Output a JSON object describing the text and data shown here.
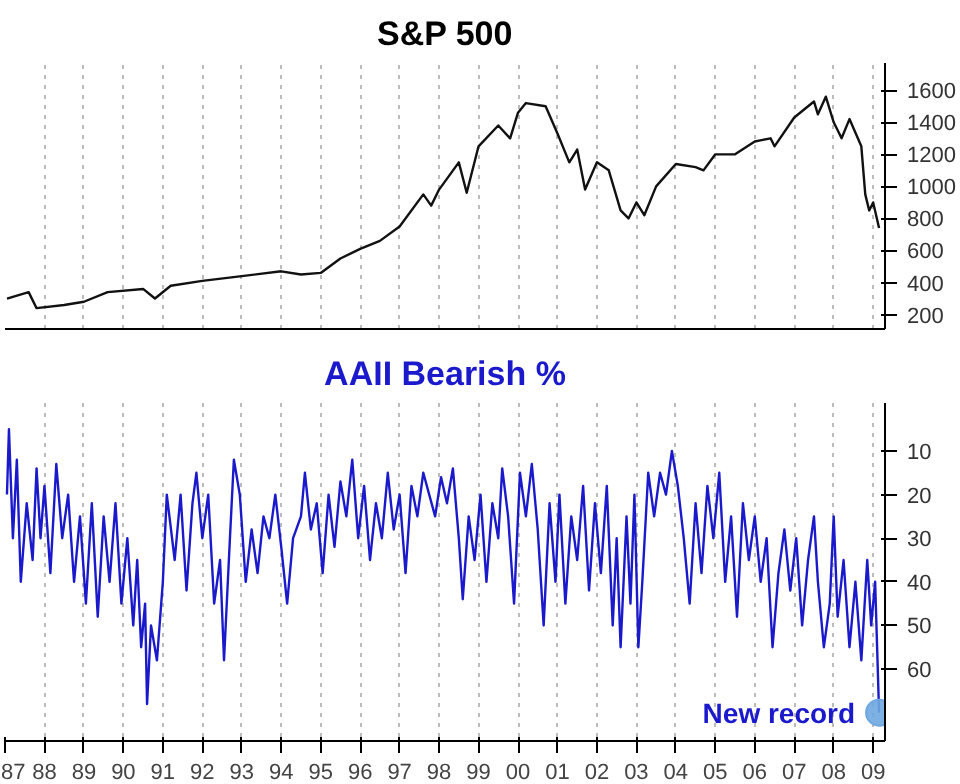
{
  "chart_data": [
    {
      "type": "line",
      "title": "S&P 500",
      "color": "#111111",
      "xlim": [
        1987.0,
        2009.3
      ],
      "ylim": [
        110,
        1770
      ],
      "yticks": [
        200,
        400,
        600,
        800,
        1000,
        1200,
        1400,
        1600
      ],
      "grid": "x",
      "tick_labels": "y",
      "xticks": [
        1987,
        1988,
        1989,
        1990,
        1991,
        1992,
        1993,
        1994,
        1995,
        1996,
        1997,
        1998,
        1999,
        2000,
        2001,
        2002,
        2003,
        2004,
        2005,
        2006,
        2007,
        2008,
        2009
      ],
      "x": [
        1987.05,
        1987.6,
        1987.8,
        1988.5,
        1989.0,
        1989.6,
        1990.5,
        1990.8,
        1991.2,
        1992.0,
        1993.0,
        1994.0,
        1994.5,
        1995.0,
        1995.5,
        1996.0,
        1996.5,
        1997.0,
        1997.6,
        1997.8,
        1998.0,
        1998.5,
        1998.7,
        1999.0,
        1999.5,
        1999.8,
        2000.0,
        2000.2,
        2000.7,
        2001.0,
        2001.3,
        2001.5,
        2001.7,
        2002.0,
        2002.3,
        2002.6,
        2002.8,
        2003.0,
        2003.2,
        2003.5,
        2004.0,
        2004.5,
        2004.7,
        2005.0,
        2005.5,
        2006.0,
        2006.4,
        2006.5,
        2007.0,
        2007.5,
        2007.6,
        2007.8,
        2008.0,
        2008.2,
        2008.4,
        2008.7,
        2008.8,
        2008.9,
        2009.0,
        2009.15
      ],
      "values": [
        300,
        340,
        240,
        260,
        280,
        340,
        360,
        300,
        380,
        410,
        440,
        470,
        450,
        460,
        550,
        610,
        660,
        750,
        950,
        880,
        980,
        1150,
        960,
        1250,
        1380,
        1300,
        1460,
        1520,
        1500,
        1330,
        1150,
        1230,
        980,
        1150,
        1100,
        850,
        800,
        900,
        820,
        1000,
        1140,
        1120,
        1100,
        1200,
        1200,
        1280,
        1300,
        1250,
        1430,
        1530,
        1450,
        1560,
        1400,
        1300,
        1420,
        1250,
        950,
        850,
        900,
        740
      ]
    },
    {
      "type": "line",
      "title": "AAII Bearish %",
      "color": "#1a1acc",
      "xlim": [
        1987.0,
        2009.3
      ],
      "ylim": [
        76.5,
        -1
      ],
      "yticks": [
        10,
        20,
        30,
        40,
        50,
        60
      ],
      "grid": "x",
      "xticks": [
        {
          "value": 1987,
          "label": "87"
        },
        {
          "value": 1988,
          "label": "88"
        },
        {
          "value": 1989,
          "label": "89"
        },
        {
          "value": 1990,
          "label": "90"
        },
        {
          "value": 1991,
          "label": "91"
        },
        {
          "value": 1992,
          "label": "92"
        },
        {
          "value": 1993,
          "label": "93"
        },
        {
          "value": 1994,
          "label": "94"
        },
        {
          "value": 1995,
          "label": "95"
        },
        {
          "value": 1996,
          "label": "96"
        },
        {
          "value": 1997,
          "label": "97"
        },
        {
          "value": 1998,
          "label": "98"
        },
        {
          "value": 1999,
          "label": "99"
        },
        {
          "value": 2000,
          "label": "00"
        },
        {
          "value": 2001,
          "label": "01"
        },
        {
          "value": 2002,
          "label": "02"
        },
        {
          "value": 2003,
          "label": "03"
        },
        {
          "value": 2004,
          "label": "04"
        },
        {
          "value": 2005,
          "label": "05"
        },
        {
          "value": 2006,
          "label": "06"
        },
        {
          "value": 2007,
          "label": "07"
        },
        {
          "value": 2008,
          "label": "08"
        },
        {
          "value": 2009,
          "label": "09"
        }
      ],
      "annotations": [
        {
          "text": "New record",
          "x": 2009.15,
          "y": 70
        }
      ],
      "x": [
        1987.05,
        1987.1,
        1987.2,
        1987.3,
        1987.4,
        1987.55,
        1987.7,
        1987.8,
        1987.9,
        1988.0,
        1988.15,
        1988.3,
        1988.45,
        1988.6,
        1988.75,
        1988.9,
        1989.05,
        1989.2,
        1989.35,
        1989.5,
        1989.65,
        1989.8,
        1989.95,
        1990.1,
        1990.25,
        1990.35,
        1990.45,
        1990.55,
        1990.6,
        1990.7,
        1990.85,
        1991.0,
        1991.1,
        1991.3,
        1991.45,
        1991.6,
        1991.75,
        1991.85,
        1992.0,
        1992.15,
        1992.3,
        1992.45,
        1992.55,
        1992.7,
        1992.8,
        1992.95,
        1993.1,
        1993.25,
        1993.4,
        1993.55,
        1993.7,
        1993.85,
        1994.0,
        1994.15,
        1994.3,
        1994.5,
        1994.6,
        1994.75,
        1994.9,
        1995.05,
        1995.2,
        1995.35,
        1995.5,
        1995.65,
        1995.8,
        1995.95,
        1996.1,
        1996.25,
        1996.4,
        1996.55,
        1996.7,
        1996.85,
        1997.0,
        1997.15,
        1997.3,
        1997.45,
        1997.6,
        1997.75,
        1997.9,
        1998.05,
        1998.2,
        1998.35,
        1998.5,
        1998.6,
        1998.75,
        1998.9,
        1999.05,
        1999.2,
        1999.35,
        1999.5,
        1999.6,
        1999.75,
        1999.9,
        2000.05,
        2000.2,
        2000.35,
        2000.5,
        2000.65,
        2000.8,
        2000.95,
        2001.05,
        2001.2,
        2001.35,
        2001.5,
        2001.65,
        2001.8,
        2001.95,
        2002.1,
        2002.25,
        2002.4,
        2002.5,
        2002.6,
        2002.75,
        2002.85,
        2002.95,
        2003.05,
        2003.15,
        2003.3,
        2003.45,
        2003.6,
        2003.75,
        2003.9,
        2004.05,
        2004.2,
        2004.35,
        2004.5,
        2004.65,
        2004.8,
        2004.95,
        2005.1,
        2005.25,
        2005.4,
        2005.55,
        2005.7,
        2005.85,
        2006.0,
        2006.15,
        2006.3,
        2006.45,
        2006.6,
        2006.75,
        2006.9,
        2007.05,
        2007.2,
        2007.35,
        2007.5,
        2007.6,
        2007.75,
        2007.9,
        2008.0,
        2008.1,
        2008.25,
        2008.4,
        2008.55,
        2008.7,
        2008.85,
        2008.95,
        2009.05,
        2009.15
      ],
      "values": [
        20,
        5,
        30,
        12,
        40,
        22,
        35,
        14,
        30,
        18,
        38,
        13,
        30,
        20,
        40,
        25,
        45,
        22,
        48,
        25,
        40,
        22,
        45,
        30,
        50,
        35,
        55,
        45,
        68,
        50,
        58,
        40,
        20,
        35,
        20,
        42,
        22,
        15,
        30,
        20,
        45,
        35,
        58,
        30,
        12,
        20,
        40,
        28,
        38,
        25,
        30,
        20,
        32,
        45,
        30,
        25,
        15,
        28,
        22,
        38,
        20,
        32,
        17,
        25,
        12,
        30,
        18,
        35,
        22,
        30,
        15,
        28,
        20,
        38,
        18,
        25,
        15,
        20,
        25,
        16,
        22,
        14,
        30,
        44,
        25,
        35,
        20,
        40,
        22,
        30,
        14,
        25,
        45,
        15,
        25,
        13,
        28,
        50,
        22,
        40,
        20,
        45,
        25,
        35,
        18,
        42,
        22,
        38,
        18,
        50,
        30,
        55,
        25,
        45,
        20,
        55,
        40,
        15,
        25,
        15,
        20,
        10,
        18,
        30,
        45,
        22,
        38,
        18,
        30,
        15,
        40,
        25,
        48,
        22,
        35,
        25,
        40,
        30,
        55,
        38,
        28,
        42,
        30,
        50,
        35,
        25,
        40,
        55,
        45,
        25,
        48,
        35,
        55,
        40,
        58,
        35,
        50,
        40,
        70
      ]
    }
  ]
}
